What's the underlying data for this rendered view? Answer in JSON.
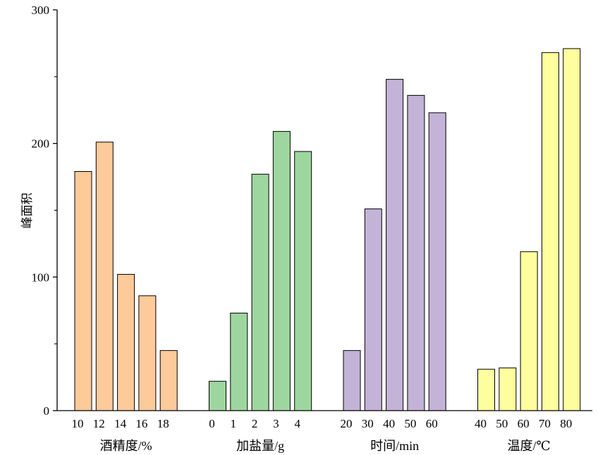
{
  "chart_data": {
    "type": "bar",
    "title": "",
    "ylabel": "峰面积",
    "ylim": [
      0,
      300
    ],
    "yticks": [
      0,
      100,
      200,
      300
    ],
    "yminor_ticks": [
      50,
      150,
      250
    ],
    "grid": false,
    "legend": "none",
    "groups": [
      {
        "name": "酒精度/%",
        "color": "#fdca9a",
        "categories": [
          "10",
          "12",
          "14",
          "16",
          "18"
        ],
        "values": [
          179,
          201,
          102,
          86,
          45
        ]
      },
      {
        "name": "加盐量/g",
        "color": "#9ed69f",
        "categories": [
          "0",
          "1",
          "2",
          "3",
          "4"
        ],
        "values": [
          22,
          73,
          177,
          209,
          194
        ]
      },
      {
        "name": "时间/min",
        "color": "#c3b3d6",
        "categories": [
          "20",
          "30",
          "40",
          "50",
          "60"
        ],
        "values": [
          45,
          151,
          248,
          236,
          223
        ]
      },
      {
        "name": "温度/℃",
        "color": "#fefe9e",
        "categories": [
          "40",
          "50",
          "60",
          "70",
          "80"
        ],
        "values": [
          31,
          32,
          119,
          268,
          271
        ]
      }
    ]
  }
}
